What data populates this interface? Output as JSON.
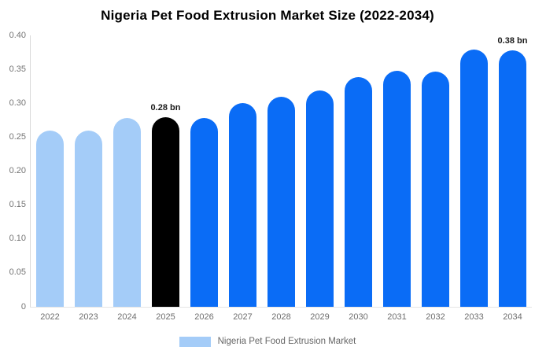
{
  "title": "Nigeria Pet Food Extrusion Market Size (2022-2034)",
  "legend": {
    "label": "Nigeria Pet Food Extrusion Market",
    "swatch_color": "#a4ccf8"
  },
  "colors": {
    "bar_historical": "#a4ccf8",
    "bar_base_year": "#000000",
    "bar_forecast": "#0a6cf6",
    "axis_line": "#d9d9d9",
    "tick_text": "#757575",
    "annotation_text": "#1a1a1a"
  },
  "chart_data": {
    "type": "bar",
    "title": "Nigeria Pet Food Extrusion Market Size (2022-2034)",
    "xlabel": "",
    "ylabel": "",
    "ylim": [
      0,
      0.4
    ],
    "grid": false,
    "legend_position": "bottom",
    "categories": [
      "2022",
      "2023",
      "2024",
      "2025",
      "2026",
      "2027",
      "2028",
      "2029",
      "2030",
      "2031",
      "2032",
      "2033",
      "2034"
    ],
    "values": [
      0.26,
      0.26,
      0.278,
      0.28,
      0.278,
      0.3,
      0.31,
      0.319,
      0.339,
      0.348,
      0.347,
      0.379,
      0.378
    ],
    "bar_colors": [
      "#a4ccf8",
      "#a4ccf8",
      "#a4ccf8",
      "#000000",
      "#0a6cf6",
      "#0a6cf6",
      "#0a6cf6",
      "#0a6cf6",
      "#0a6cf6",
      "#0a6cf6",
      "#0a6cf6",
      "#0a6cf6",
      "#0a6cf6"
    ],
    "yticks": [
      "0.40",
      "0.35",
      "0.30",
      "0.25",
      "0.20",
      "0.15",
      "0.10",
      "0.05",
      "0"
    ],
    "annotations": [
      {
        "category": "2025",
        "text": "0.28 bn"
      },
      {
        "category": "2034",
        "text": "0.38 bn"
      }
    ],
    "series_name": "Nigeria Pet Food Extrusion Market"
  }
}
